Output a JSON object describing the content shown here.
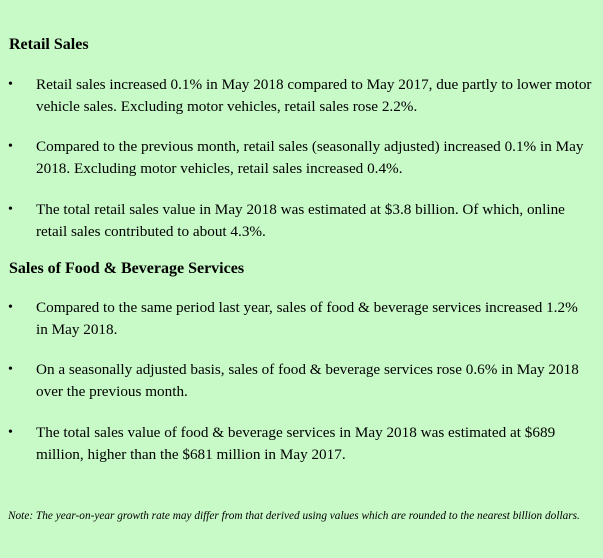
{
  "sections": [
    {
      "heading": "Retail Sales",
      "bullets": [
        "Retail sales increased 0.1% in May 2018 compared to May 2017, due partly to lower motor vehicle sales. Excluding motor vehicles, retail sales rose 2.2%.",
        "Compared to the previous month, retail sales (seasonally adjusted) increased 0.1% in May 2018. Excluding motor vehicles, retail sales increased 0.4%.",
        "The total retail sales value in May 2018 was estimated at $3.8 billion. Of which, online retail sales contributed to about 4.3%."
      ]
    },
    {
      "heading": "Sales of Food & Beverage Services",
      "bullets": [
        "Compared to the same period last year, sales of food & beverage services increased 1.2% in May 2018.",
        "On a seasonally adjusted basis, sales of food & beverage services rose 0.6% in May 2018 over the previous month.",
        "The total sales value of food & beverage services in May 2018 was estimated at $689 million, higher than the $681 million in May 2017."
      ]
    }
  ],
  "bullet_symbol": "•",
  "note": "Note: The year-on-year growth rate may differ from that derived using values which are rounded to the nearest billion dollars."
}
